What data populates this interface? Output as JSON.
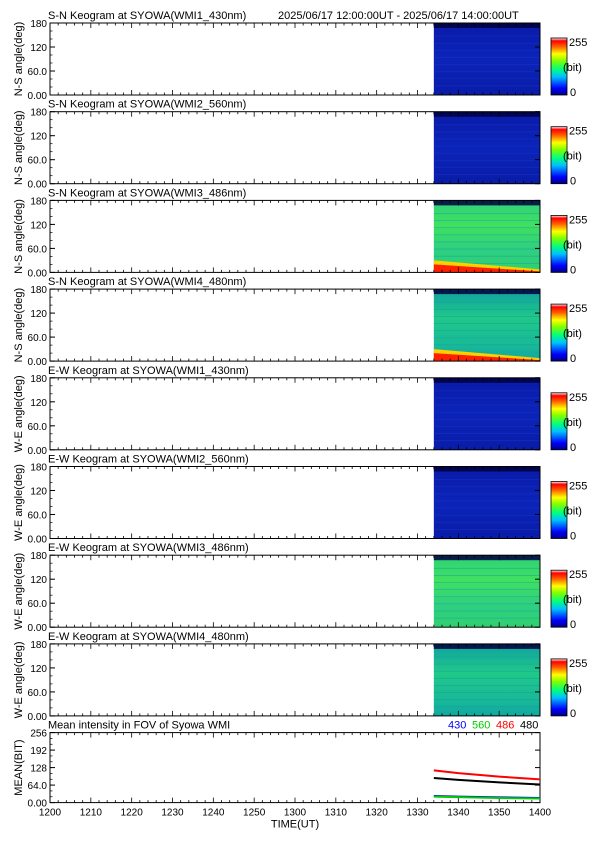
{
  "header": {
    "time_range": "2025/06/17 12:00:00UT - 2025/06/17 14:00:00UT"
  },
  "colorbar": {
    "max_label": "255",
    "unit_label": "(bit)",
    "min_label": "0"
  },
  "chart_data": [
    {
      "type": "heatmap",
      "title": "S-N Keogram at SYOWA(WMI1_430nm)",
      "ylabel": "N-S angle(deg)",
      "yticks": [
        "180",
        "120",
        "60.0",
        "0.00"
      ],
      "ylim": [
        0,
        180
      ],
      "data_start_time": "1334",
      "level": "low",
      "colorbar_range": [
        0,
        255
      ]
    },
    {
      "type": "heatmap",
      "title": "S-N Keogram at SYOWA(WMI2_560nm)",
      "ylabel": "N-S angle(deg)",
      "yticks": [
        "180",
        "120",
        "60.0",
        "0.00"
      ],
      "ylim": [
        0,
        180
      ],
      "data_start_time": "1334",
      "level": "low",
      "colorbar_range": [
        0,
        255
      ]
    },
    {
      "type": "heatmap",
      "title": "S-N Keogram at SYOWA(WMI3_486nm)",
      "ylabel": "N-S angle(deg)",
      "yticks": [
        "180",
        "120",
        "60.0",
        "0.00"
      ],
      "ylim": [
        0,
        180
      ],
      "data_start_time": "1334",
      "level": "high",
      "colorbar_range": [
        0,
        255
      ]
    },
    {
      "type": "heatmap",
      "title": "S-N Keogram at SYOWA(WMI4_480nm)",
      "ylabel": "N-S angle(deg)",
      "yticks": [
        "180",
        "120",
        "60.0",
        "0.00"
      ],
      "ylim": [
        0,
        180
      ],
      "data_start_time": "1334",
      "level": "mid",
      "colorbar_range": [
        0,
        255
      ]
    },
    {
      "type": "heatmap",
      "title": "E-W Keogram at SYOWA(WMI1_430nm)",
      "ylabel": "W-E angle(deg)",
      "yticks": [
        "180",
        "120",
        "60.0",
        "0.00"
      ],
      "ylim": [
        0,
        180
      ],
      "data_start_time": "1334",
      "level": "low",
      "colorbar_range": [
        0,
        255
      ]
    },
    {
      "type": "heatmap",
      "title": "E-W Keogram at SYOWA(WMI2_560nm)",
      "ylabel": "W-E angle(deg)",
      "yticks": [
        "180",
        "120",
        "60.0",
        "0.00"
      ],
      "ylim": [
        0,
        180
      ],
      "data_start_time": "1334",
      "level": "low",
      "colorbar_range": [
        0,
        255
      ]
    },
    {
      "type": "heatmap",
      "title": "E-W Keogram at SYOWA(WMI3_486nm)",
      "ylabel": "W-E angle(deg)",
      "yticks": [
        "180",
        "120",
        "60.0",
        "0.00"
      ],
      "ylim": [
        0,
        180
      ],
      "data_start_time": "1334",
      "level": "high",
      "colorbar_range": [
        0,
        255
      ]
    },
    {
      "type": "heatmap",
      "title": "E-W Keogram at SYOWA(WMI4_480nm)",
      "ylabel": "W-E angle(deg)",
      "yticks": [
        "180",
        "120",
        "60.0",
        "0.00"
      ],
      "ylim": [
        0,
        180
      ],
      "data_start_time": "1334",
      "level": "mid",
      "colorbar_range": [
        0,
        255
      ]
    },
    {
      "type": "line",
      "title": "Mean intensity in FOV of Syowa WMI",
      "ylabel": "MEAN(BIT)",
      "yticks": [
        "256",
        "192",
        "128",
        "64.0",
        "0.00"
      ],
      "ylim": [
        0,
        256
      ],
      "xlabel": "TIME(UT)",
      "xticks": [
        "1200",
        "1210",
        "1220",
        "1230",
        "1240",
        "1250",
        "1300",
        "1310",
        "1320",
        "1330",
        "1340",
        "1350",
        "1400"
      ],
      "series": [
        {
          "name": "430",
          "color": "#0000ff",
          "x_min": [
            94,
            100,
            110,
            120
          ],
          "y": [
            24,
            22,
            19,
            17
          ]
        },
        {
          "name": "560",
          "color": "#00cc00",
          "x_min": [
            94,
            100,
            110,
            120
          ],
          "y": [
            22,
            20,
            17,
            15
          ]
        },
        {
          "name": "486",
          "color": "#ff0000",
          "x_min": [
            94,
            100,
            110,
            120
          ],
          "y": [
            118,
            108,
            95,
            85
          ]
        },
        {
          "name": "480",
          "color": "#000000",
          "x_min": [
            94,
            100,
            110,
            120
          ],
          "y": [
            90,
            83,
            74,
            66
          ]
        }
      ]
    }
  ]
}
